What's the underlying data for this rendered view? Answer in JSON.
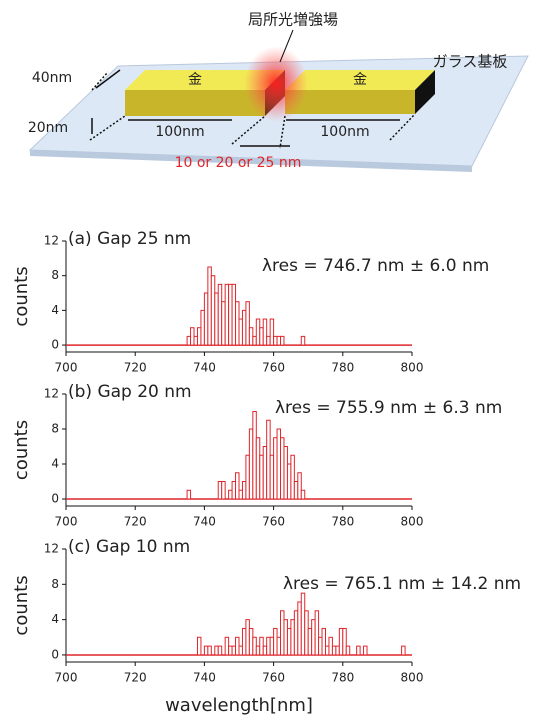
{
  "diagram": {
    "field_label": "局所光増強場",
    "substrate_label": "ガラス基板",
    "width_label": "40nm",
    "height_label": "20nm",
    "gold_left": "金",
    "gold_right": "金",
    "length_left": "100nm",
    "length_right": "100nm",
    "gap_label": "10 or 20 or 25 nm"
  },
  "chart_data": [
    {
      "type": "histogram",
      "title": "(a) Gap 25 nm",
      "annotation": "λres = 746.7 nm ± 6.0 nm",
      "ylabel": "counts",
      "color": "#e0262b",
      "bins": [
        735,
        736,
        737,
        738,
        739,
        740,
        741,
        742,
        743,
        744,
        745,
        746,
        747,
        748,
        749,
        750,
        751,
        752,
        753,
        754,
        755,
        756,
        757,
        758,
        759,
        760,
        761,
        762,
        763,
        764,
        765,
        766,
        767,
        768,
        769
      ],
      "counts": [
        1,
        2,
        1,
        2,
        4,
        6,
        9,
        8,
        6,
        7,
        5,
        7,
        7,
        7,
        5,
        3,
        4,
        5,
        2,
        1,
        3,
        2,
        3,
        1,
        3,
        1,
        1,
        1,
        0,
        0,
        0,
        0,
        0,
        1
      ],
      "xlim": [
        700,
        800
      ],
      "ylim": [
        -0.8,
        12
      ],
      "xticks": [
        700,
        720,
        740,
        760,
        780,
        800
      ],
      "yticks": [
        0,
        4,
        8,
        12
      ]
    },
    {
      "type": "histogram",
      "title": "(b) Gap 20 nm",
      "annotation": "λres = 755.9 nm ± 6.3 nm",
      "ylabel": "counts",
      "color": "#e0262b",
      "bins": [
        735,
        736,
        737,
        738,
        739,
        740,
        741,
        742,
        743,
        744,
        745,
        746,
        747,
        748,
        749,
        750,
        751,
        752,
        753,
        754,
        755,
        756,
        757,
        758,
        759,
        760,
        761,
        762,
        763,
        764,
        765,
        766,
        767,
        768,
        769
      ],
      "counts": [
        1,
        0,
        0,
        0,
        0,
        0,
        0,
        0,
        0,
        2,
        2,
        0,
        1,
        2,
        3,
        1,
        2,
        5,
        8,
        10,
        7,
        5,
        6,
        9,
        5,
        7,
        8,
        7,
        6,
        4,
        5,
        2,
        3,
        1
      ],
      "xlim": [
        700,
        800
      ],
      "ylim": [
        -0.8,
        12
      ],
      "xticks": [
        700,
        720,
        740,
        760,
        780,
        800
      ],
      "yticks": [
        0,
        4,
        8,
        12
      ]
    },
    {
      "type": "histogram",
      "title": "(c) Gap 10 nm",
      "annotation": "λres = 765.1 nm ± 14.2 nm",
      "ylabel": "counts",
      "xlabel": "wavelength[nm]",
      "color": "#e0262b",
      "bins": [
        738,
        739,
        740,
        741,
        742,
        743,
        744,
        745,
        746,
        747,
        748,
        749,
        750,
        751,
        752,
        753,
        754,
        755,
        756,
        757,
        758,
        759,
        760,
        761,
        762,
        763,
        764,
        765,
        766,
        767,
        768,
        769,
        770,
        771,
        772,
        773,
        774,
        775,
        776,
        777,
        778,
        779,
        780,
        781,
        782,
        783,
        784,
        785,
        786,
        787,
        788,
        789,
        790,
        791,
        792,
        793,
        794,
        795,
        796,
        797,
        798
      ],
      "counts": [
        2,
        0,
        1,
        1,
        0,
        1,
        1,
        0,
        2,
        1,
        1,
        2,
        1,
        3,
        4,
        3,
        2,
        1,
        2,
        1,
        2,
        2,
        3,
        2,
        5,
        4,
        3,
        4,
        5,
        6,
        7,
        5,
        3,
        4,
        5,
        2,
        3,
        1,
        2,
        1,
        1,
        3,
        3,
        1,
        0,
        0,
        1,
        0,
        1,
        0,
        0,
        0,
        0,
        0,
        0,
        0,
        0,
        0,
        0,
        1
      ],
      "xlim": [
        700,
        800
      ],
      "ylim": [
        -0.8,
        12
      ],
      "xticks": [
        700,
        720,
        740,
        760,
        780,
        800
      ],
      "yticks": [
        0,
        4,
        8,
        12
      ]
    }
  ]
}
